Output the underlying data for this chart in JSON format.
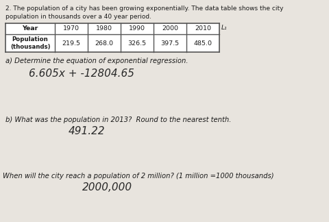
{
  "background_color": "#e8e4de",
  "header_line1": "2. The population of a city has been growing exponentially. The data table shows the city",
  "header_line2": "population in thousands over a 40 year period.",
  "years": [
    "Year",
    "1970",
    "1980",
    "1990",
    "2000",
    "2010"
  ],
  "populations": [
    "Population\n(thousands)",
    "219.5",
    "268.0",
    "326.5",
    "397.5",
    "485.0"
  ],
  "l1_label": "L₁",
  "part_a_label": "a) Determine the equation of exponential regression.",
  "part_a_answer": "6.605x + -12804.65",
  "part_b_label": "b) What was the population in 2013?  Round to the nearest tenth.",
  "part_b_answer": "491.22",
  "part_c_label": "When will the city reach a population of 2 million? (1 million =1000 thousands)",
  "part_c_answer": "2000,000",
  "text_color": "#1a1a1a",
  "table_line_color": "#555555"
}
